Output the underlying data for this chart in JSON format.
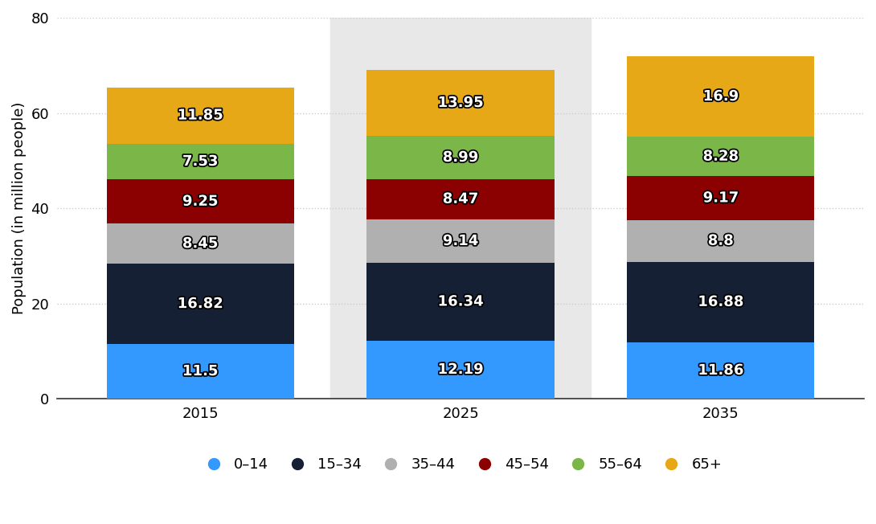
{
  "years": [
    "2015",
    "2025",
    "2035"
  ],
  "segments": [
    {
      "label": "0–14",
      "values": [
        11.5,
        12.19,
        11.86
      ],
      "color": "#3399ff"
    },
    {
      "label": "15–34",
      "values": [
        16.82,
        16.34,
        16.88
      ],
      "color": "#152035"
    },
    {
      "label": "35–44",
      "values": [
        8.45,
        9.14,
        8.8
      ],
      "color": "#b0b0b0"
    },
    {
      "label": "45–54",
      "values": [
        9.25,
        8.47,
        9.17
      ],
      "color": "#8b0000"
    },
    {
      "label": "55–64",
      "values": [
        7.53,
        8.99,
        8.28
      ],
      "color": "#7ab648"
    },
    {
      "label": "65+",
      "values": [
        11.85,
        13.95,
        16.9
      ],
      "color": "#e6a817"
    }
  ],
  "ylabel": "Population (in million people)",
  "ylim": [
    0,
    80
  ],
  "yticks": [
    0,
    20,
    40,
    60,
    80
  ],
  "bar_width": 0.72,
  "background_color": "#ffffff",
  "highlight_col": 1,
  "highlight_color": "#e8e8e8",
  "grid_color": "#cccccc",
  "label_fontsize": 13,
  "tick_fontsize": 13,
  "legend_fontsize": 13
}
